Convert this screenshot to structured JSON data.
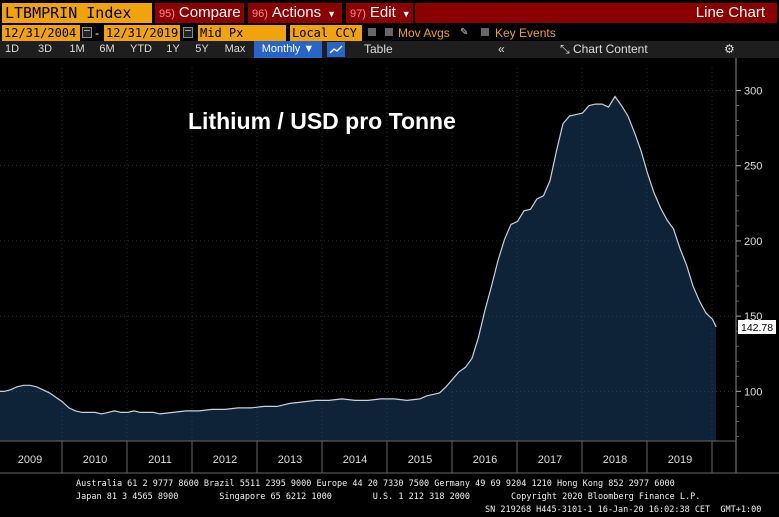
{
  "header": {
    "ticker": "LTBMPRIN Index",
    "menus": [
      {
        "num": "95)",
        "label": "Compare"
      },
      {
        "num": "96)",
        "label": "Actions"
      },
      {
        "num": "97)",
        "label": "Edit"
      }
    ],
    "chart_type": "Line Chart",
    "colors": {
      "amber": "#f0a30a",
      "menu_red": "#8b0000",
      "active_blue": "#2766c8"
    }
  },
  "controls": {
    "start_date": "12/31/2004",
    "end_date": "12/31/2019",
    "separator": "-",
    "price_field": "Mid Px",
    "currency": "Local CCY",
    "mov_avgs": "Mov Avgs",
    "key_events": "Key Events"
  },
  "periods": [
    "1D",
    "3D",
    "1M",
    "6M",
    "YTD",
    "1Y",
    "5Y",
    "Max"
  ],
  "frequency": "Monthly",
  "toolbar": {
    "table_label": "Table",
    "collapse_label": "«",
    "chart_content_label": "Chart Content",
    "icons": [
      "line-chart-icon",
      "gear-icon",
      "calendar-icon"
    ]
  },
  "chart_data": {
    "type": "area",
    "title": "Lithium / USD pro Tonne",
    "fill_color": "#0e2238",
    "line_color": "#c8d0dc",
    "x_ticks": [
      "2009",
      "2010",
      "2011",
      "2012",
      "2013",
      "2014",
      "2015",
      "2016",
      "2017",
      "2018",
      "2019"
    ],
    "y_ticks": [
      100,
      150,
      200,
      250,
      300
    ],
    "ylim": [
      65,
      305
    ],
    "xlim": [
      2008.5,
      2020.0
    ],
    "last_value_label": "142.78",
    "x": [
      2008.5,
      2008.6,
      2008.7,
      2008.8,
      2008.9,
      2009.0,
      2009.1,
      2009.2,
      2009.3,
      2009.4,
      2009.5,
      2009.6,
      2009.7,
      2009.8,
      2009.9,
      2010.0,
      2010.1,
      2010.2,
      2010.3,
      2010.4,
      2010.5,
      2010.6,
      2010.7,
      2010.8,
      2010.9,
      2011.0,
      2011.2,
      2011.4,
      2011.6,
      2011.8,
      2012.0,
      2012.2,
      2012.4,
      2012.6,
      2012.8,
      2013.0,
      2013.2,
      2013.4,
      2013.6,
      2013.8,
      2014.0,
      2014.2,
      2014.4,
      2014.6,
      2014.8,
      2015.0,
      2015.1,
      2015.2,
      2015.3,
      2015.4,
      2015.5,
      2015.6,
      2015.7,
      2015.8,
      2015.9,
      2016.0,
      2016.1,
      2016.2,
      2016.3,
      2016.4,
      2016.5,
      2016.6,
      2016.7,
      2016.8,
      2016.9,
      2017.0,
      2017.1,
      2017.2,
      2017.3,
      2017.4,
      2017.5,
      2017.6,
      2017.7,
      2017.8,
      2017.9,
      2018.0,
      2018.1,
      2018.2,
      2018.3,
      2018.4,
      2018.5,
      2018.6,
      2018.7,
      2018.8,
      2018.9,
      2019.0,
      2019.1,
      2019.2,
      2019.3,
      2019.4,
      2019.5,
      2019.6,
      2019.7,
      2019.8,
      2019.9
    ],
    "y": [
      100,
      100,
      101,
      103,
      104,
      104,
      103,
      101,
      99,
      96,
      93,
      89,
      87,
      86,
      86,
      86,
      85,
      86,
      87,
      86,
      86,
      87,
      86,
      86,
      86,
      85,
      86,
      87,
      87,
      88,
      88,
      89,
      89,
      90,
      90,
      92,
      93,
      94,
      94,
      95,
      94,
      94,
      95,
      95,
      94,
      95,
      97,
      98,
      99,
      103,
      108,
      113,
      116,
      122,
      136,
      154,
      170,
      187,
      201,
      211,
      213,
      220,
      221,
      228,
      230,
      240,
      260,
      278,
      283,
      284,
      285,
      290,
      291,
      291,
      289,
      296,
      290,
      283,
      272,
      260,
      245,
      232,
      222,
      214,
      208,
      195,
      184,
      170,
      160,
      152,
      148,
      143,
      143,
      142.78,
      142.78
    ]
  },
  "footer": {
    "line1": "Australia 61 2 9777 8600 Brazil 5511 2395 9000 Europe 44 20 7330 7500 Germany 49 69 9204 1210 Hong Kong 852 2977 6000",
    "line2": "Japan 81 3 4565 8900        Singapore 65 6212 1000        U.S. 1 212 318 2000        Copyright 2020 Bloomberg Finance L.P.",
    "line3": "SN 219268 H445-3101-1 16-Jan-20 16:02:38 CET  GMT+1:00"
  }
}
